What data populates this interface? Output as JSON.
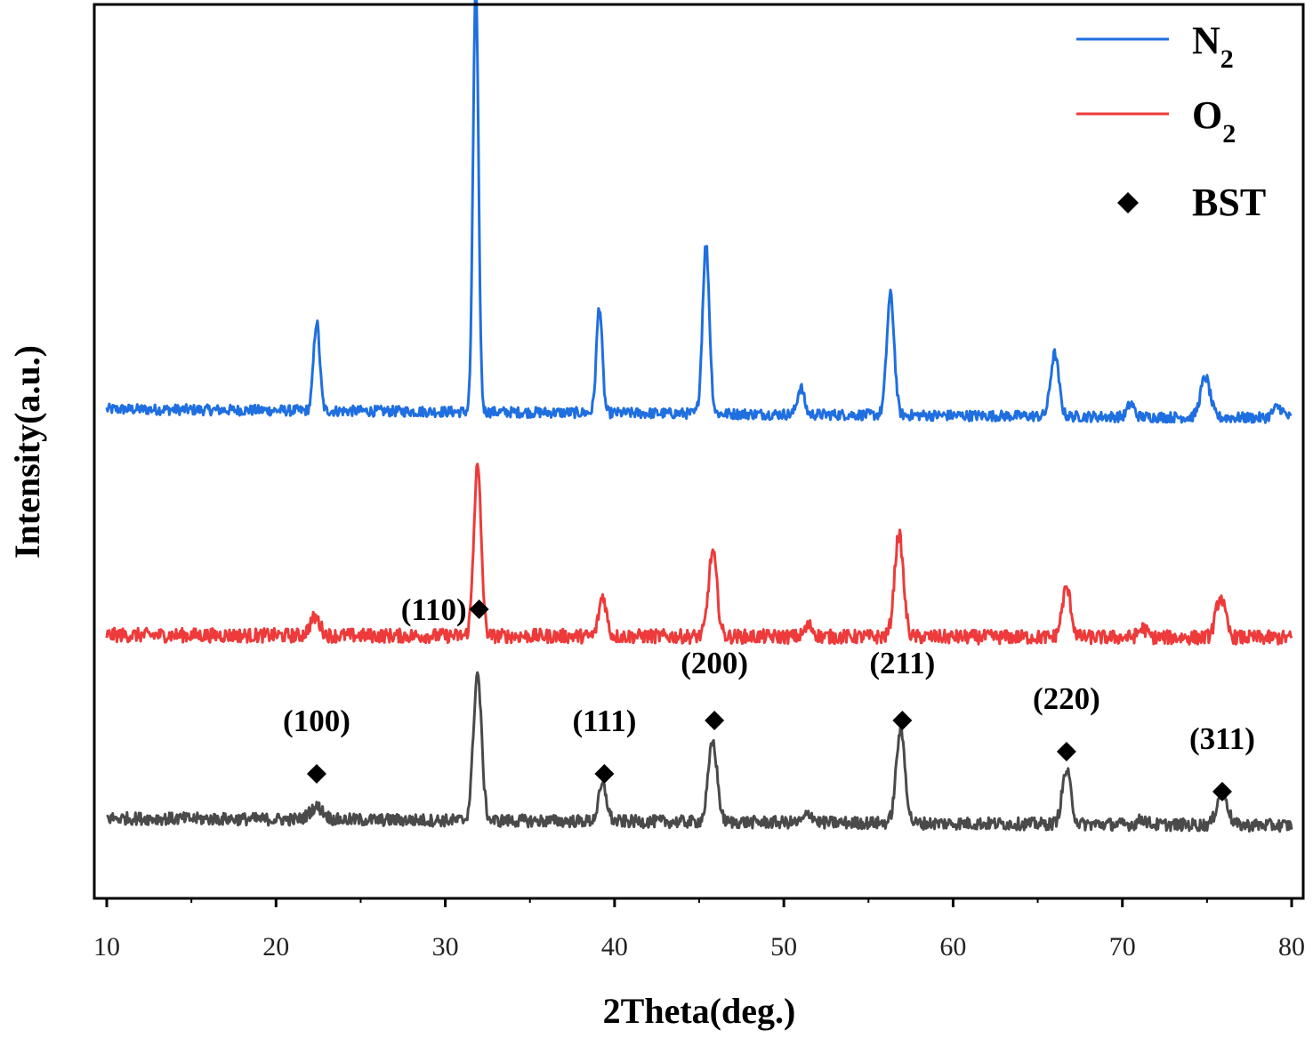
{
  "chart_data": {
    "type": "line",
    "xlabel": "2Theta(deg.)",
    "ylabel": "Intensity(a.u.)",
    "xlim": [
      10,
      80
    ],
    "x_ticks": [
      10,
      20,
      30,
      40,
      50,
      60,
      70,
      80
    ],
    "y_ticks_shown": false,
    "grid": false,
    "legend_position": "top-right",
    "legend": [
      {
        "label": "N",
        "sub": "2",
        "kind": "line",
        "color": "#1f6fe0"
      },
      {
        "label": "O",
        "sub": "2",
        "kind": "line",
        "color": "#ee3a3a"
      },
      {
        "label": "BST",
        "sub": "",
        "kind": "diamond",
        "color": "#000000"
      }
    ],
    "series": [
      {
        "name": "N2",
        "color": "#1f6fe0",
        "baseline": 0.54,
        "baseline_drift": -0.01,
        "noise": 0.006,
        "peaks": [
          {
            "x": 22.4,
            "h": 0.1,
            "w": 0.18
          },
          {
            "x": 31.8,
            "h": 0.48,
            "w": 0.16
          },
          {
            "x": 39.1,
            "h": 0.12,
            "w": 0.17
          },
          {
            "x": 45.4,
            "h": 0.19,
            "w": 0.2
          },
          {
            "x": 51.0,
            "h": 0.03,
            "w": 0.2
          },
          {
            "x": 56.3,
            "h": 0.135,
            "w": 0.22
          },
          {
            "x": 66.0,
            "h": 0.07,
            "w": 0.24
          },
          {
            "x": 70.5,
            "h": 0.015,
            "w": 0.2
          },
          {
            "x": 74.9,
            "h": 0.045,
            "w": 0.28
          },
          {
            "x": 79.2,
            "h": 0.012,
            "w": 0.3
          }
        ]
      },
      {
        "name": "O2",
        "color": "#ee3a3a",
        "baseline": 0.286,
        "baseline_drift": -0.003,
        "noise": 0.008,
        "peaks": [
          {
            "x": 22.3,
            "h": 0.02,
            "w": 0.3
          },
          {
            "x": 31.9,
            "h": 0.19,
            "w": 0.22
          },
          {
            "x": 39.3,
            "h": 0.045,
            "w": 0.22
          },
          {
            "x": 45.8,
            "h": 0.095,
            "w": 0.25
          },
          {
            "x": 51.5,
            "h": 0.012,
            "w": 0.25
          },
          {
            "x": 56.8,
            "h": 0.115,
            "w": 0.26
          },
          {
            "x": 66.7,
            "h": 0.055,
            "w": 0.26
          },
          {
            "x": 71.2,
            "h": 0.01,
            "w": 0.25
          },
          {
            "x": 75.8,
            "h": 0.045,
            "w": 0.28
          }
        ]
      },
      {
        "name": "BST",
        "color": "#4a4a4a",
        "baseline": 0.08,
        "baseline_drift": -0.008,
        "noise": 0.007,
        "peaks": [
          {
            "x": 22.4,
            "h": 0.014,
            "w": 0.4
          },
          {
            "x": 31.9,
            "h": 0.165,
            "w": 0.24
          },
          {
            "x": 39.3,
            "h": 0.04,
            "w": 0.24
          },
          {
            "x": 45.8,
            "h": 0.09,
            "w": 0.26
          },
          {
            "x": 51.5,
            "h": 0.01,
            "w": 0.25
          },
          {
            "x": 56.9,
            "h": 0.105,
            "w": 0.26
          },
          {
            "x": 66.7,
            "h": 0.06,
            "w": 0.26
          },
          {
            "x": 71.2,
            "h": 0.006,
            "w": 0.25
          },
          {
            "x": 75.9,
            "h": 0.04,
            "w": 0.3
          }
        ]
      }
    ],
    "annotations": [
      {
        "text": "(100)",
        "x": 22.4,
        "y": 0.19,
        "marker_y": 0.13,
        "label_side": "above"
      },
      {
        "text": "(110)",
        "x": 32.0,
        "y": 0.315,
        "marker_y": 0.315,
        "label_side": "left"
      },
      {
        "text": "(111)",
        "x": 39.4,
        "y": 0.19,
        "marker_y": 0.13,
        "label_side": "above"
      },
      {
        "text": "(200)",
        "x": 45.9,
        "y": 0.255,
        "marker_y": 0.19,
        "label_side": "above"
      },
      {
        "text": "(211)",
        "x": 57.0,
        "y": 0.255,
        "marker_y": 0.19,
        "label_side": "above"
      },
      {
        "text": "(220)",
        "x": 66.7,
        "y": 0.215,
        "marker_y": 0.155,
        "label_side": "above"
      },
      {
        "text": "(311)",
        "x": 75.9,
        "y": 0.17,
        "marker_y": 0.11,
        "label_side": "above"
      }
    ]
  }
}
